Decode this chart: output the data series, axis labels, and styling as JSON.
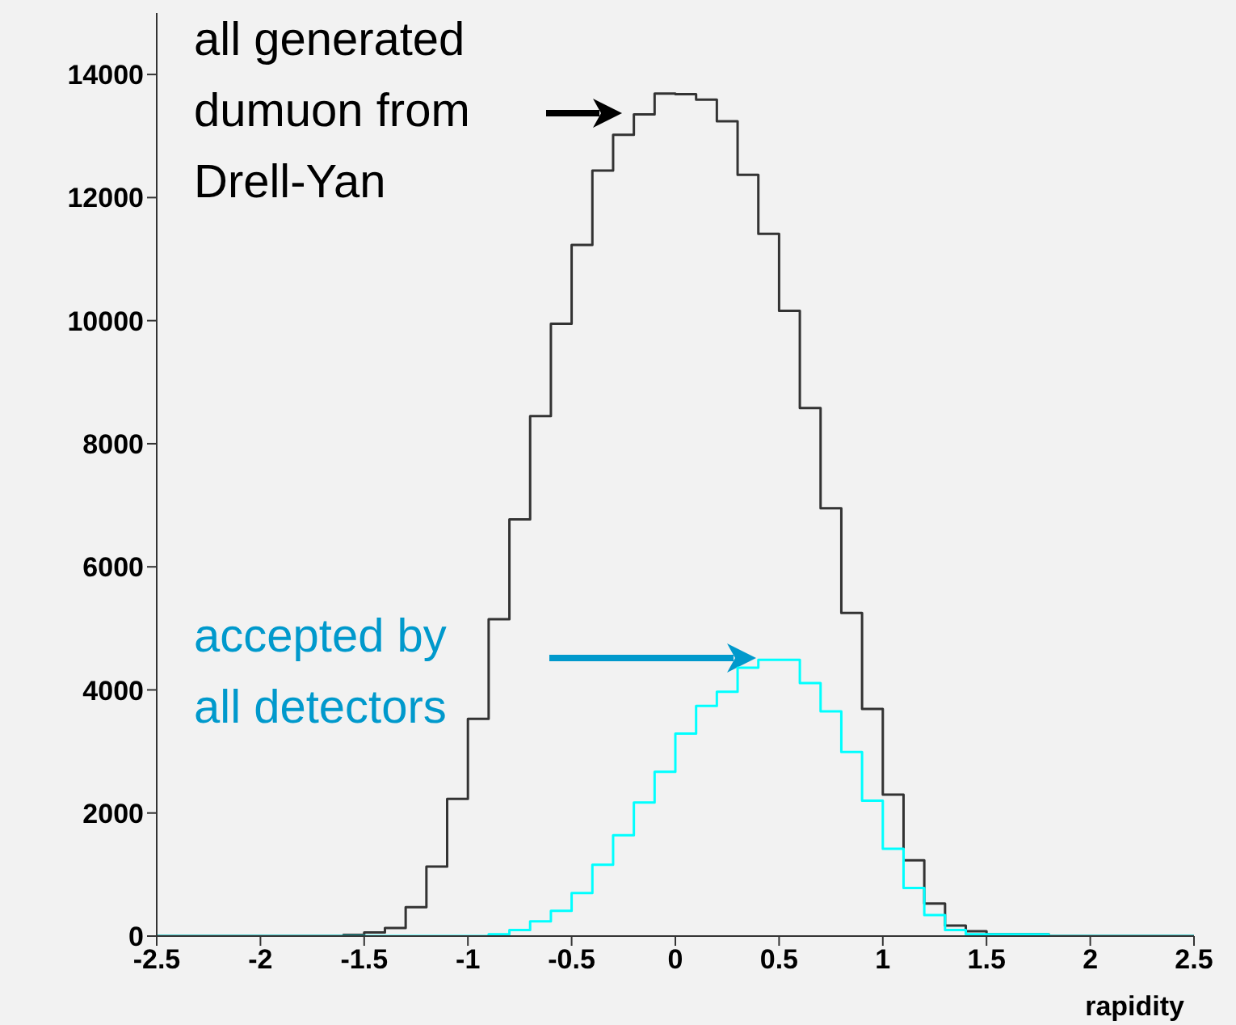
{
  "chart_data": {
    "type": "histogram",
    "xlabel": "rapidity",
    "xlim": [
      -2.5,
      2.5
    ],
    "xticks": [
      -2.5,
      -2,
      -1.5,
      -1,
      -0.5,
      0,
      0.5,
      1,
      1.5,
      2,
      2.5
    ],
    "ylim": [
      0,
      15000
    ],
    "yticks": [
      0,
      2000,
      4000,
      6000,
      8000,
      10000,
      12000,
      14000
    ],
    "grid": false,
    "bins": [
      -2.5,
      -2.4,
      -2.3,
      -2.2,
      -2.1,
      -2,
      -1.9,
      -1.8,
      -1.7,
      -1.6,
      -1.5,
      -1.4,
      -1.3,
      -1.2,
      -1.1,
      -1,
      -0.9,
      -0.8,
      -0.7,
      -0.6,
      -0.5,
      -0.4,
      -0.3,
      -0.2,
      -0.1,
      0,
      0.1,
      0.2,
      0.3,
      0.4,
      0.5,
      0.6,
      0.7,
      0.8,
      0.9,
      1,
      1.1,
      1.2,
      1.3,
      1.4,
      1.5,
      1.6,
      1.7,
      1.8,
      1.9,
      2,
      2.1,
      2.2,
      2.3,
      2.4,
      2.5
    ],
    "series": [
      {
        "color": "#333333",
        "values": [
          0,
          0,
          0,
          0,
          0,
          0,
          0,
          0,
          0,
          20,
          60,
          130,
          470,
          1130,
          2230,
          3530,
          5150,
          6770,
          8450,
          9950,
          11230,
          12440,
          13020,
          13350,
          13690,
          13680,
          13590,
          13240,
          12370,
          11410,
          10160,
          8580,
          6950,
          5250,
          3690,
          2300,
          1230,
          530,
          170,
          80,
          30,
          30,
          30,
          0,
          0,
          0,
          0,
          0,
          0,
          0
        ]
      },
      {
        "color": "#00ffff",
        "values": [
          0,
          0,
          0,
          0,
          0,
          0,
          0,
          0,
          0,
          0,
          0,
          0,
          0,
          0,
          0,
          0,
          30,
          100,
          240,
          410,
          700,
          1160,
          1640,
          2170,
          2670,
          3290,
          3740,
          3970,
          4360,
          4490,
          4490,
          4110,
          3650,
          2990,
          2200,
          1420,
          780,
          340,
          100,
          30,
          30,
          30,
          30,
          0,
          0,
          0,
          0,
          0,
          0,
          0
        ]
      }
    ],
    "annotations": [
      "all generated\ndumuon from\nDrell-Yan",
      "accepted by\nall detectors"
    ]
  }
}
